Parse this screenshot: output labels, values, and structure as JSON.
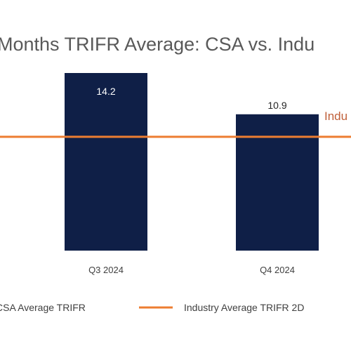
{
  "chart_data": {
    "type": "bar",
    "title": "Months TRIFR Average: CSA vs. Indu",
    "categories": [
      "Q3 2024",
      "Q4 2024"
    ],
    "series": [
      {
        "name": "CSA Average TRIFR",
        "values": [
          14.2,
          10.9
        ],
        "color": "#0f1f47"
      }
    ],
    "data_labels": [
      "14.2",
      "10.9"
    ],
    "reference_line": {
      "name": "Industry Average TRIFR 2D",
      "label": "Indu",
      "value": 9.1,
      "color": "#ed7d31"
    },
    "ylim": [
      0,
      14.2
    ],
    "legend_position": "bottom",
    "grid": false
  }
}
